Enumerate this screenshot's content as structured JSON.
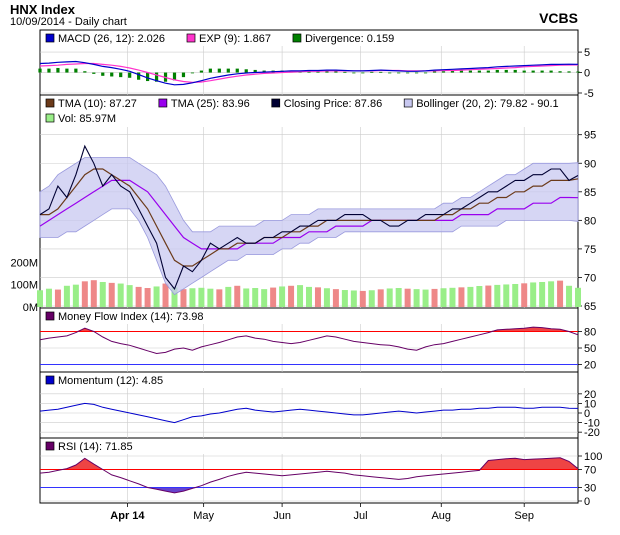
{
  "header": {
    "title": "HNX Index",
    "subtitle": "10/09/2014 - Daily chart",
    "source": "VCBS"
  },
  "colors": {
    "grid": "#cccccc",
    "frame": "#000000",
    "macd": "#0000cc",
    "exp": "#ff33cc",
    "divergence": "#008000",
    "tma10": "#6b3a1a",
    "tma25": "#9900ee",
    "close": "#000033",
    "bollinger_fill": "#c8c8f0",
    "bollinger_line": "#9999dd",
    "vol_up": "#99ee88",
    "vol_down": "#ee8888",
    "mfi": "#660066",
    "momentum": "#0000cc",
    "rsi": "#660066",
    "overbought_fill": "#ee4444",
    "oversold_fill": "#6644cc",
    "level_red": "#ff0000",
    "level_blue": "#3333ff"
  },
  "chart_data": [
    {
      "type": "line",
      "panel": "macd",
      "legend": [
        {
          "label": "MACD (26, 12): 2.026",
          "color": "#0000cc"
        },
        {
          "label": "EXP (9): 1.867",
          "color": "#ff33cc"
        },
        {
          "label": "Divergence: 0.159",
          "color": "#008000"
        }
      ],
      "ylim": [
        -5,
        6
      ],
      "yticks": [
        "5",
        "0",
        "-5"
      ],
      "yticks_values": [
        5,
        0,
        -5
      ],
      "x": [
        0,
        4,
        8,
        12,
        16,
        20,
        24,
        28,
        32,
        36,
        40,
        44,
        48,
        52,
        56,
        60,
        64,
        68,
        72,
        76,
        80,
        84,
        88,
        92,
        96,
        100,
        104,
        108,
        112,
        116,
        120,
        124,
        128,
        132,
        136,
        140,
        144,
        148,
        152,
        156,
        160,
        164,
        168,
        172,
        176,
        180,
        184,
        188,
        192,
        196,
        200,
        204,
        208,
        212,
        216,
        220,
        224,
        228,
        232,
        236,
        240
      ],
      "series": [
        {
          "name": "MACD",
          "values": [
            2.2,
            2.3,
            2.5,
            2.6,
            2.7,
            2.4,
            2.0,
            1.5,
            1.2,
            0.8,
            0.3,
            -0.5,
            -1.3,
            -2.0,
            -2.6,
            -3.0,
            -2.9,
            -2.5,
            -2.0,
            -1.4,
            -1.0,
            -0.6,
            -0.3,
            -0.1,
            0.0,
            0.1,
            0.2,
            0.3,
            0.4,
            0.4,
            0.5,
            0.5,
            0.6,
            0.6,
            0.5,
            0.4,
            0.4,
            0.5,
            0.6,
            0.5,
            0.4,
            0.3,
            0.3,
            0.4,
            0.6,
            0.7,
            0.8,
            0.9,
            1.0,
            1.1,
            1.2,
            1.4,
            1.5,
            1.6,
            1.7,
            1.8,
            1.9,
            2.0,
            2.0,
            2.03,
            2.026
          ]
        },
        {
          "name": "EXP",
          "values": [
            1.6,
            1.7,
            1.8,
            2.0,
            2.1,
            2.2,
            2.2,
            2.0,
            1.8,
            1.5,
            1.1,
            0.6,
            0.0,
            -0.6,
            -1.2,
            -1.8,
            -2.2,
            -2.4,
            -2.3,
            -2.0,
            -1.6,
            -1.2,
            -0.9,
            -0.6,
            -0.4,
            -0.2,
            -0.1,
            0.0,
            0.1,
            0.2,
            0.3,
            0.3,
            0.4,
            0.4,
            0.4,
            0.4,
            0.4,
            0.4,
            0.5,
            0.5,
            0.5,
            0.4,
            0.4,
            0.4,
            0.4,
            0.5,
            0.5,
            0.6,
            0.7,
            0.8,
            0.9,
            1.0,
            1.1,
            1.2,
            1.4,
            1.5,
            1.6,
            1.7,
            1.8,
            1.85,
            1.867
          ]
        }
      ]
    },
    {
      "type": "line",
      "panel": "price",
      "legend": [
        {
          "label": "TMA (10): 87.27",
          "color": "#6b3a1a"
        },
        {
          "label": "TMA (25): 83.96",
          "color": "#9900ee"
        },
        {
          "label": "Closing Price: 87.86",
          "color": "#000033"
        },
        {
          "label": "Bollinger (20, 2): 79.82 - 90.1",
          "color": "#c8c8f0"
        },
        {
          "label": "Vol: 85.97M",
          "color": "#99ee88"
        }
      ],
      "ylim": [
        65,
        96
      ],
      "yticks": [
        "95",
        "90",
        "85",
        "80",
        "75",
        "70",
        "65"
      ],
      "yticks_values": [
        95,
        90,
        85,
        80,
        75,
        70,
        65
      ],
      "volume_ticks": [
        "200M",
        "100M",
        "0M"
      ],
      "volume_ticks_values": [
        200,
        100,
        0
      ],
      "volume_max": 300,
      "x": [
        0,
        4,
        8,
        12,
        16,
        20,
        24,
        28,
        32,
        36,
        40,
        44,
        48,
        52,
        56,
        60,
        64,
        68,
        72,
        76,
        80,
        84,
        88,
        92,
        96,
        100,
        104,
        108,
        112,
        116,
        120,
        124,
        128,
        132,
        136,
        140,
        144,
        148,
        152,
        156,
        160,
        164,
        168,
        172,
        176,
        180,
        184,
        188,
        192,
        196,
        200,
        204,
        208,
        212,
        216,
        220,
        224,
        228,
        232,
        236,
        240
      ],
      "series": [
        {
          "name": "Closing Price",
          "values": [
            81,
            82,
            86,
            84,
            88,
            93,
            90,
            86,
            88,
            86,
            85,
            82,
            79,
            76,
            70,
            68,
            72,
            71,
            73,
            76,
            75,
            76,
            77,
            76,
            76,
            77,
            77,
            78,
            78,
            79,
            79,
            80,
            80,
            80,
            81,
            81,
            81,
            80,
            80,
            79,
            79,
            80,
            80,
            81,
            81,
            81,
            82,
            82,
            83,
            84,
            85,
            85,
            86,
            87,
            87,
            88,
            88,
            89,
            89,
            87,
            87.86
          ]
        },
        {
          "name": "TMA (10)",
          "values": [
            81,
            81,
            82,
            84,
            86,
            88,
            89,
            89,
            88,
            87,
            86,
            84,
            82,
            79,
            76,
            73,
            72,
            72,
            73,
            74,
            75,
            75,
            76,
            76,
            76,
            77,
            77,
            77,
            78,
            78,
            79,
            79,
            80,
            80,
            80,
            80,
            80,
            80,
            80,
            80,
            80,
            80,
            80,
            80,
            80,
            81,
            81,
            82,
            82,
            83,
            83,
            84,
            84,
            85,
            85,
            86,
            86,
            87,
            87,
            87,
            87.27
          ]
        },
        {
          "name": "TMA (25)",
          "values": [
            79,
            80,
            81,
            82,
            83,
            84,
            85,
            86,
            87,
            87,
            87,
            86,
            85,
            83,
            81,
            79,
            77,
            76,
            75,
            75,
            75,
            75,
            75,
            76,
            76,
            76,
            76,
            77,
            77,
            77,
            78,
            78,
            78,
            79,
            79,
            79,
            79,
            80,
            80,
            80,
            80,
            80,
            80,
            80,
            80,
            80,
            80,
            81,
            81,
            81,
            81,
            82,
            82,
            82,
            82,
            83,
            83,
            83,
            84,
            84,
            83.96
          ]
        },
        {
          "name": "Bollinger upper",
          "values": [
            85,
            86,
            88,
            89,
            90,
            91,
            91,
            91,
            91,
            91,
            91,
            90,
            89,
            88,
            86,
            83,
            80,
            78,
            78,
            78,
            79,
            79,
            79,
            79,
            79,
            80,
            80,
            80,
            81,
            81,
            81,
            82,
            82,
            82,
            82,
            82,
            82,
            82,
            82,
            82,
            82,
            82,
            82,
            82,
            82,
            83,
            83,
            84,
            84,
            85,
            86,
            87,
            88,
            88,
            89,
            90,
            90,
            90,
            90,
            90,
            90.1
          ]
        },
        {
          "name": "Bollinger lower",
          "values": [
            77,
            77,
            77,
            78,
            78,
            79,
            80,
            81,
            82,
            82,
            82,
            80,
            77,
            73,
            69,
            67,
            68,
            69,
            70,
            71,
            72,
            73,
            73,
            74,
            74,
            74,
            74,
            75,
            75,
            76,
            76,
            77,
            77,
            77,
            78,
            78,
            78,
            78,
            78,
            78,
            78,
            78,
            78,
            78,
            78,
            78,
            78,
            79,
            79,
            79,
            79,
            79,
            80,
            80,
            80,
            80,
            80,
            80,
            80,
            80,
            79.82
          ]
        }
      ],
      "volume": [
        75,
        82,
        78,
        95,
        100,
        115,
        120,
        112,
        108,
        105,
        98,
        90,
        85,
        92,
        105,
        88,
        80,
        84,
        86,
        82,
        79,
        90,
        95,
        83,
        85,
        80,
        87,
        92,
        95,
        98,
        90,
        88,
        84,
        80,
        76,
        74,
        72,
        75,
        79,
        83,
        85,
        82,
        80,
        78,
        81,
        84,
        86,
        88,
        90,
        94,
        96,
        99,
        101,
        103,
        106,
        110,
        112,
        115,
        118,
        95,
        85.97
      ],
      "volume_up": [
        true,
        true,
        false,
        true,
        true,
        false,
        false,
        true,
        false,
        true,
        true,
        false,
        false,
        true,
        false,
        true,
        false,
        true,
        true,
        true,
        false,
        true,
        false,
        true,
        true,
        true,
        false,
        true,
        false,
        true,
        true,
        false,
        true,
        false,
        true,
        true,
        false,
        true,
        false,
        true,
        true,
        false,
        true,
        true,
        false,
        true,
        true,
        false,
        true,
        true,
        false,
        true,
        true,
        true,
        false,
        true,
        true,
        true,
        false,
        true,
        true
      ]
    },
    {
      "type": "line",
      "panel": "mfi",
      "legend": [
        {
          "label": "Money Flow Index (14): 73.98",
          "color": "#660066"
        }
      ],
      "ylim": [
        10,
        90
      ],
      "yticks": [
        "80",
        "50",
        "20"
      ],
      "yticks_values": [
        80,
        50,
        20
      ],
      "level_high": 80,
      "level_low": 20,
      "x": [
        0,
        4,
        8,
        12,
        16,
        20,
        24,
        28,
        32,
        36,
        40,
        44,
        48,
        52,
        56,
        60,
        64,
        68,
        72,
        76,
        80,
        84,
        88,
        92,
        96,
        100,
        104,
        108,
        112,
        116,
        120,
        124,
        128,
        132,
        136,
        140,
        144,
        148,
        152,
        156,
        160,
        164,
        168,
        172,
        176,
        180,
        184,
        188,
        192,
        196,
        200,
        204,
        208,
        212,
        216,
        220,
        224,
        228,
        232,
        236,
        240
      ],
      "values": [
        65,
        68,
        70,
        72,
        78,
        86,
        80,
        70,
        62,
        58,
        55,
        50,
        45,
        40,
        42,
        48,
        50,
        46,
        52,
        56,
        60,
        65,
        70,
        72,
        68,
        66,
        62,
        60,
        58,
        60,
        64,
        68,
        72,
        70,
        66,
        62,
        60,
        58,
        56,
        55,
        52,
        48,
        46,
        52,
        56,
        58,
        62,
        66,
        70,
        74,
        78,
        83,
        84,
        85,
        86,
        88,
        87,
        85,
        84,
        80,
        73.98
      ]
    },
    {
      "type": "line",
      "panel": "momentum",
      "legend": [
        {
          "label": "Momentum (12): 4.85",
          "color": "#0000cc"
        }
      ],
      "ylim": [
        -24,
        24
      ],
      "yticks": [
        "20",
        "10",
        "0",
        "-10",
        "-20"
      ],
      "yticks_values": [
        20,
        10,
        0,
        -10,
        -20
      ],
      "x": [
        0,
        4,
        8,
        12,
        16,
        20,
        24,
        28,
        32,
        36,
        40,
        44,
        48,
        52,
        56,
        60,
        64,
        68,
        72,
        76,
        80,
        84,
        88,
        92,
        96,
        100,
        104,
        108,
        112,
        116,
        120,
        124,
        128,
        132,
        136,
        140,
        144,
        148,
        152,
        156,
        160,
        164,
        168,
        172,
        176,
        180,
        184,
        188,
        192,
        196,
        200,
        204,
        208,
        212,
        216,
        220,
        224,
        228,
        232,
        236,
        240
      ],
      "values": [
        2,
        3,
        4,
        6,
        8,
        10,
        9,
        6,
        4,
        2,
        0,
        -2,
        -4,
        -6,
        -8,
        -10,
        -7,
        -4,
        -3,
        -1,
        0,
        2,
        4,
        5,
        3,
        2,
        1,
        2,
        3,
        4,
        3,
        2,
        1,
        0,
        -1,
        -2,
        -2,
        -1,
        0,
        1,
        2,
        1,
        0,
        1,
        2,
        3,
        3,
        4,
        4,
        5,
        5,
        6,
        6,
        6,
        5,
        5,
        6,
        6,
        6,
        5,
        4.85
      ]
    },
    {
      "type": "line",
      "panel": "rsi",
      "legend": [
        {
          "label": "RSI (14): 71.85",
          "color": "#660066"
        }
      ],
      "ylim": [
        0,
        100
      ],
      "yticks": [
        "100",
        "70",
        "30",
        "0"
      ],
      "yticks_values": [
        100,
        70,
        30,
        0
      ],
      "level_high": 70,
      "level_low": 30,
      "x": [
        0,
        4,
        8,
        12,
        16,
        20,
        24,
        28,
        32,
        36,
        40,
        44,
        48,
        52,
        56,
        60,
        64,
        68,
        72,
        76,
        80,
        84,
        88,
        92,
        96,
        100,
        104,
        108,
        112,
        116,
        120,
        124,
        128,
        132,
        136,
        140,
        144,
        148,
        152,
        156,
        160,
        164,
        168,
        172,
        176,
        180,
        184,
        188,
        192,
        196,
        200,
        204,
        208,
        212,
        216,
        220,
        224,
        228,
        232,
        236,
        240
      ],
      "values": [
        62,
        64,
        68,
        72,
        80,
        95,
        82,
        70,
        58,
        52,
        45,
        38,
        30,
        26,
        22,
        18,
        22,
        28,
        34,
        42,
        48,
        55,
        60,
        64,
        62,
        60,
        58,
        56,
        58,
        60,
        62,
        64,
        66,
        64,
        62,
        58,
        56,
        54,
        52,
        50,
        48,
        50,
        54,
        56,
        58,
        60,
        62,
        64,
        66,
        68,
        90,
        92,
        94,
        95,
        92,
        93,
        94,
        95,
        96,
        88,
        71.85
      ]
    }
  ],
  "x_axis": {
    "labels": [
      {
        "text": "Apr 14",
        "at": 39,
        "bold": true
      },
      {
        "text": "May",
        "at": 73,
        "bold": false
      },
      {
        "text": "Jun",
        "at": 108,
        "bold": false
      },
      {
        "text": "Jul",
        "at": 143,
        "bold": false
      },
      {
        "text": "Aug",
        "at": 179,
        "bold": false
      },
      {
        "text": "Sep",
        "at": 216,
        "bold": false
      }
    ]
  }
}
